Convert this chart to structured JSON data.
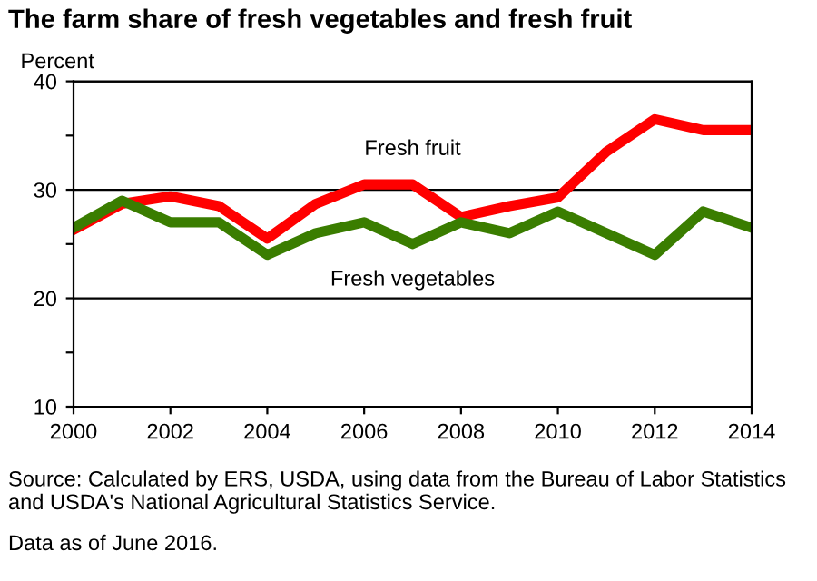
{
  "chart_data": {
    "type": "line",
    "title": "The farm share of fresh vegetables and fresh fruit",
    "ylabel": "Percent",
    "x": [
      2000,
      2001,
      2002,
      2003,
      2004,
      2005,
      2006,
      2007,
      2008,
      2009,
      2010,
      2011,
      2012,
      2013,
      2014
    ],
    "series": [
      {
        "name": "Fresh fruit",
        "color": "#ff0000",
        "values": [
          26.3,
          28.7,
          29.4,
          28.5,
          25.5,
          28.7,
          30.5,
          30.5,
          27.5,
          28.5,
          29.3,
          33.5,
          36.5,
          35.5,
          35.5
        ]
      },
      {
        "name": "Fresh vegetables",
        "color": "#3a7d00",
        "values": [
          26.5,
          29,
          27,
          27,
          24,
          26,
          27,
          25,
          27,
          26,
          28,
          26,
          24,
          28,
          26.5
        ]
      }
    ],
    "xlim": [
      2000,
      2014
    ],
    "xticks": [
      2000,
      2002,
      2004,
      2006,
      2008,
      2010,
      2012,
      2014
    ],
    "ylim": [
      10,
      40
    ],
    "yticks": [
      10,
      {
        "value": 15,
        "label": null
      },
      20,
      {
        "value": 25,
        "label": null
      },
      30,
      {
        "value": 35,
        "label": null
      },
      40
    ],
    "grid": "y",
    "legend": false,
    "marker": "none",
    "line_style": "solid",
    "annotations": [
      "Source: Calculated by ERS, USDA, using data from the Bureau of Labor Statistics and USDA's National Agricultural Statistics Service.",
      "Data as of June 2016."
    ]
  }
}
